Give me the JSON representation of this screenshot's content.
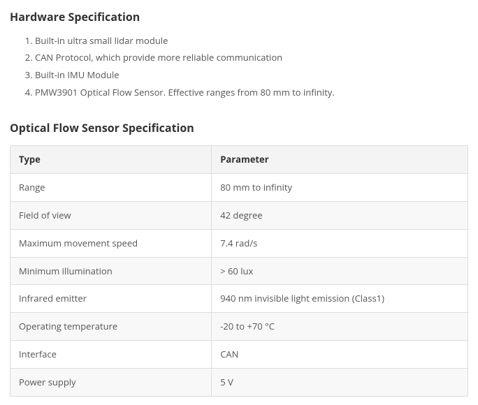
{
  "hardware": {
    "heading": "Hardware Specification",
    "items": [
      "Built-in ultra small lidar module",
      "CAN Protocol, which provide more reliable communication",
      "Built-in IMU Module",
      "PMW3901 Optical Flow Sensor. Effective ranges from 80 mm to infinity."
    ]
  },
  "optical": {
    "heading": "Optical Flow Sensor Specification",
    "table": {
      "columns": [
        "Type",
        "Parameter"
      ],
      "column_widths": [
        "44%",
        "56%"
      ],
      "header_bg": "#f4f4f4",
      "row_alt_bg": "#f8f8f8",
      "border_color": "#dddddd",
      "rows": [
        [
          "Range",
          "80 mm to infinity"
        ],
        [
          "Field of view",
          "42 degree"
        ],
        [
          "Maximum movement speed",
          "7.4 rad/s"
        ],
        [
          "Minimum illumination",
          "> 60 lux"
        ],
        [
          "Infrared emitter",
          "940 nm invisible light emission (Class1)"
        ],
        [
          "Operating temperature",
          "-20 to +70 °C"
        ],
        [
          "Interface",
          "CAN"
        ],
        [
          "Power supply",
          "5 V"
        ]
      ]
    }
  }
}
